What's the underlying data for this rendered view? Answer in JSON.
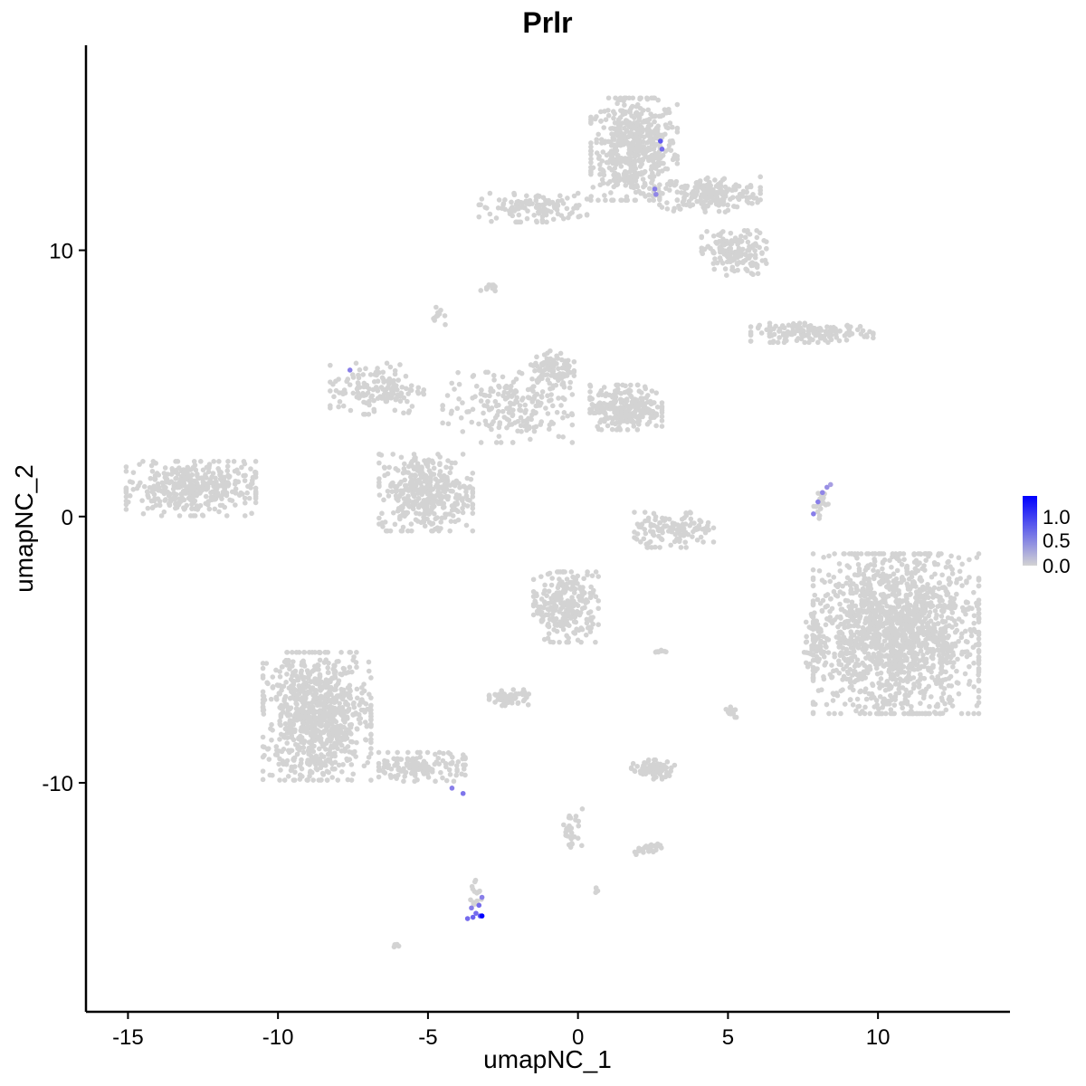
{
  "chart_data": {
    "type": "scatter",
    "title": "Prlr",
    "xlabel": "umapNC_1",
    "ylabel": "umapNC_2",
    "xlim": [
      -16.4,
      14.4
    ],
    "ylim": [
      -18.6,
      17.7
    ],
    "xticks": [
      -15,
      -10,
      -5,
      0,
      5,
      10
    ],
    "yticks": [
      -10,
      0,
      10
    ],
    "grid": false,
    "legend": {
      "placement": "right",
      "ticks": [
        "1.0",
        "0.5",
        "0.0"
      ],
      "range": [
        0,
        1.2
      ],
      "low_color": "#d3d3d3",
      "high_color": "#0000ff"
    },
    "background_cell_color": "#d3d3d3",
    "background_clusters": [
      {
        "x": 1.87,
        "y": 13.8,
        "sx": 1.2,
        "sy": 1.6,
        "n": 550
      },
      {
        "x": 4.4,
        "y": 12.1,
        "sx": 1.4,
        "sy": 0.55,
        "n": 200
      },
      {
        "x": 5.2,
        "y": 9.9,
        "sx": 0.9,
        "sy": 0.7,
        "n": 160
      },
      {
        "x": -1.5,
        "y": 11.6,
        "sx": 1.5,
        "sy": 0.45,
        "n": 120
      },
      {
        "x": 7.8,
        "y": 6.9,
        "sx": 1.7,
        "sy": 0.3,
        "n": 150
      },
      {
        "x": -3.0,
        "y": 8.6,
        "sx": 0.2,
        "sy": 0.15,
        "n": 12
      },
      {
        "x": -4.6,
        "y": 7.5,
        "sx": 0.2,
        "sy": 0.3,
        "n": 12
      },
      {
        "x": -12.9,
        "y": 1.05,
        "sx": 1.8,
        "sy": 0.85,
        "n": 380
      },
      {
        "x": -6.7,
        "y": 4.8,
        "sx": 1.3,
        "sy": 0.8,
        "n": 150
      },
      {
        "x": -5.07,
        "y": 0.9,
        "sx": 1.3,
        "sy": 1.2,
        "n": 380
      },
      {
        "x": -2.35,
        "y": 4.1,
        "sx": 1.8,
        "sy": 1.1,
        "n": 200
      },
      {
        "x": 1.6,
        "y": 4.1,
        "sx": 1.0,
        "sy": 0.7,
        "n": 260
      },
      {
        "x": -0.85,
        "y": 5.5,
        "sx": 0.6,
        "sy": 0.6,
        "n": 100
      },
      {
        "x": 3.2,
        "y": -0.5,
        "sx": 1.1,
        "sy": 0.55,
        "n": 130
      },
      {
        "x": 10.6,
        "y": -4.4,
        "sx": 2.3,
        "sy": 2.5,
        "n": 1600
      },
      {
        "x": 7.9,
        "y": -4.6,
        "sx": 0.3,
        "sy": 1.0,
        "n": 60
      },
      {
        "x": -0.4,
        "y": -3.4,
        "sx": 0.9,
        "sy": 1.1,
        "n": 260
      },
      {
        "x": -8.7,
        "y": -7.5,
        "sx": 1.5,
        "sy": 2.0,
        "n": 850
      },
      {
        "x": -5.2,
        "y": -9.4,
        "sx": 1.2,
        "sy": 0.45,
        "n": 150
      },
      {
        "x": -2.3,
        "y": -6.8,
        "sx": 0.55,
        "sy": 0.25,
        "n": 60
      },
      {
        "x": 2.5,
        "y": -9.5,
        "sx": 0.6,
        "sy": 0.3,
        "n": 80
      },
      {
        "x": 2.3,
        "y": -12.5,
        "sx": 0.4,
        "sy": 0.2,
        "n": 30
      },
      {
        "x": -0.2,
        "y": -11.7,
        "sx": 0.3,
        "sy": 0.6,
        "n": 30
      },
      {
        "x": -3.4,
        "y": -14.2,
        "sx": 0.15,
        "sy": 0.45,
        "n": 15
      },
      {
        "x": 5.1,
        "y": -7.3,
        "sx": 0.15,
        "sy": 0.2,
        "n": 15
      },
      {
        "x": -6.05,
        "y": -16.1,
        "sx": 0.1,
        "sy": 0.05,
        "n": 5
      },
      {
        "x": 0.6,
        "y": -14.0,
        "sx": 0.1,
        "sy": 0.1,
        "n": 5
      },
      {
        "x": 2.8,
        "y": -5.1,
        "sx": 0.3,
        "sy": 0.1,
        "n": 10
      },
      {
        "x": 8.1,
        "y": 0.5,
        "sx": 0.2,
        "sy": 0.5,
        "n": 25
      }
    ],
    "expressing_cells": [
      {
        "x": 2.75,
        "y": 14.1,
        "v": 0.8
      },
      {
        "x": 2.8,
        "y": 13.8,
        "v": 0.7
      },
      {
        "x": 2.56,
        "y": 12.3,
        "v": 0.6
      },
      {
        "x": 2.6,
        "y": 12.1,
        "v": 0.55
      },
      {
        "x": -7.6,
        "y": 5.5,
        "v": 0.6
      },
      {
        "x": -4.2,
        "y": -10.2,
        "v": 0.6
      },
      {
        "x": -3.83,
        "y": -10.4,
        "v": 0.65
      },
      {
        "x": 7.85,
        "y": 0.1,
        "v": 0.6
      },
      {
        "x": 8.0,
        "y": 0.55,
        "v": 0.6
      },
      {
        "x": 8.15,
        "y": 0.9,
        "v": 0.55
      },
      {
        "x": 8.3,
        "y": 1.1,
        "v": 0.5
      },
      {
        "x": 8.42,
        "y": 1.2,
        "v": 0.4
      },
      {
        "x": -3.68,
        "y": -15.1,
        "v": 0.7
      },
      {
        "x": -3.5,
        "y": -15.05,
        "v": 0.75
      },
      {
        "x": -3.4,
        "y": -14.9,
        "v": 0.7
      },
      {
        "x": -3.26,
        "y": -15.0,
        "v": 0.8
      },
      {
        "x": -3.2,
        "y": -15.0,
        "v": 1.2
      },
      {
        "x": -3.3,
        "y": -14.6,
        "v": 0.7
      },
      {
        "x": -3.2,
        "y": -14.3,
        "v": 0.6
      },
      {
        "x": -3.55,
        "y": -14.7,
        "v": 0.6
      }
    ]
  }
}
